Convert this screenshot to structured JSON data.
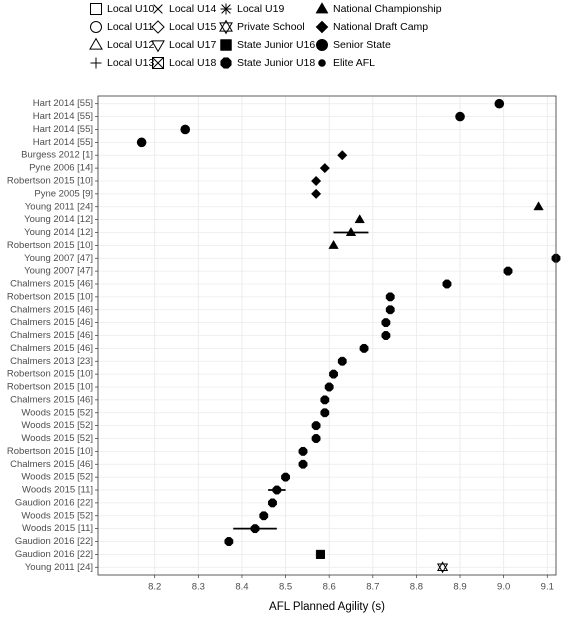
{
  "chart_data": {
    "type": "scatter",
    "x_label": "AFL Planned Agility (s)",
    "xlim": [
      8.07,
      9.12
    ],
    "xticks": [
      8.2,
      8.3,
      8.4,
      8.5,
      8.6,
      8.7,
      8.8,
      8.9,
      {
        "value": 9,
        "label": "9.0"
      },
      9.1
    ],
    "grid": true,
    "categories": [
      "Hart 2014 [55]",
      "Hart 2014 [55]",
      "Hart 2014 [55]",
      "Hart 2014 [55]",
      "Burgess 2012 [1]",
      "Pyne 2006 [14]",
      "Robertson 2015 [10]",
      "Pyne 2005 [9]",
      "Young 2011 [24]",
      "Young 2014 [12]",
      "Young 2014 [12]",
      "Robertson 2015 [10]",
      "Young 2007 [47]",
      "Young 2007 [47]",
      "Chalmers 2015 [46]",
      "Robertson 2015 [10]",
      "Chalmers 2015 [46]",
      "Chalmers 2015 [46]",
      "Chalmers 2015 [46]",
      "Chalmers 2015 [46]",
      "Chalmers 2013 [23]",
      "Robertson 2015 [10]",
      "Robertson 2015 [10]",
      "Chalmers 2015 [46]",
      "Woods 2015 [52]",
      "Woods 2015 [52]",
      "Woods 2015 [52]",
      "Robertson 2015 [10]",
      "Chalmers 2015 [46]",
      "Woods 2015 [52]",
      "Woods 2015 [11]",
      "Gaudion 2016 [22]",
      "Woods 2015 [52]",
      "Woods 2015 [11]",
      "Gaudion 2016 [22]",
      "Gaudion 2016 [22]",
      "Young 2011 [24]"
    ],
    "series": [
      {
        "name": "Local U10",
        "color": "#000000",
        "shape": "square-open",
        "values": [
          null,
          null,
          null,
          null,
          null,
          null,
          null,
          null,
          null,
          null,
          null,
          null,
          null,
          null,
          null,
          null,
          null,
          null,
          null,
          null,
          null,
          null,
          null,
          null,
          null,
          null,
          null,
          null,
          null,
          null,
          null,
          null,
          null,
          null,
          null,
          null,
          null
        ]
      },
      {
        "name": "Local U11",
        "color": "#000000",
        "shape": "circle-open",
        "values": [
          null,
          null,
          null,
          null,
          null,
          null,
          null,
          null,
          null,
          null,
          null,
          null,
          null,
          null,
          null,
          null,
          null,
          null,
          null,
          null,
          null,
          null,
          null,
          null,
          null,
          null,
          null,
          null,
          null,
          null,
          null,
          null,
          null,
          null,
          null,
          null,
          null
        ]
      },
      {
        "name": "Local U12",
        "color": "#000000",
        "shape": "triangle-open",
        "values": [
          null,
          null,
          null,
          null,
          null,
          null,
          null,
          null,
          null,
          null,
          null,
          null,
          null,
          null,
          null,
          null,
          null,
          null,
          null,
          null,
          null,
          null,
          null,
          null,
          null,
          null,
          null,
          null,
          null,
          null,
          null,
          null,
          null,
          null,
          null,
          null,
          null
        ]
      },
      {
        "name": "Local U13",
        "color": "#000000",
        "shape": "plus",
        "values": [
          null,
          null,
          null,
          null,
          null,
          null,
          null,
          null,
          null,
          null,
          null,
          null,
          null,
          null,
          null,
          null,
          null,
          null,
          null,
          null,
          null,
          null,
          null,
          null,
          null,
          null,
          null,
          null,
          null,
          null,
          null,
          null,
          null,
          null,
          null,
          null,
          null
        ]
      },
      {
        "name": "Local U14",
        "color": "#000000",
        "shape": "cross",
        "values": [
          null,
          null,
          null,
          null,
          null,
          null,
          null,
          null,
          null,
          null,
          null,
          null,
          null,
          null,
          null,
          null,
          null,
          null,
          null,
          null,
          null,
          null,
          null,
          null,
          null,
          null,
          null,
          null,
          null,
          null,
          null,
          null,
          null,
          null,
          null,
          null,
          null
        ]
      },
      {
        "name": "Local U15",
        "color": "#000000",
        "shape": "diamond-open",
        "values": [
          null,
          null,
          null,
          null,
          null,
          null,
          null,
          null,
          null,
          null,
          null,
          null,
          null,
          null,
          null,
          null,
          null,
          null,
          null,
          null,
          null,
          null,
          null,
          null,
          null,
          null,
          null,
          null,
          null,
          null,
          null,
          null,
          null,
          null,
          null,
          null,
          null
        ]
      },
      {
        "name": "Local U17",
        "color": "#000000",
        "shape": "triangle-down-open",
        "values": [
          null,
          null,
          null,
          null,
          null,
          null,
          null,
          null,
          null,
          null,
          null,
          null,
          null,
          null,
          null,
          null,
          null,
          null,
          null,
          null,
          null,
          null,
          null,
          null,
          null,
          null,
          null,
          null,
          null,
          null,
          null,
          null,
          null,
          null,
          null,
          null,
          null
        ]
      },
      {
        "name": "Local U18",
        "color": "#000000",
        "shape": "square-cross",
        "values": [
          null,
          null,
          null,
          null,
          null,
          null,
          null,
          null,
          null,
          null,
          null,
          null,
          null,
          null,
          null,
          null,
          null,
          null,
          null,
          null,
          null,
          null,
          null,
          null,
          null,
          null,
          null,
          null,
          null,
          null,
          null,
          null,
          null,
          null,
          null,
          null,
          null
        ]
      },
      {
        "name": "Local U19",
        "color": "#000000",
        "shape": "asterisk",
        "values": [
          null,
          null,
          null,
          null,
          null,
          null,
          null,
          null,
          null,
          null,
          null,
          null,
          null,
          null,
          null,
          null,
          null,
          null,
          null,
          null,
          null,
          null,
          null,
          null,
          null,
          null,
          null,
          null,
          null,
          null,
          null,
          null,
          null,
          null,
          null,
          null,
          null
        ]
      },
      {
        "name": "Private School",
        "color": "#000000",
        "shape": "star-open",
        "values": [
          null,
          null,
          null,
          null,
          null,
          null,
          null,
          null,
          null,
          null,
          null,
          null,
          null,
          null,
          null,
          null,
          null,
          null,
          null,
          null,
          null,
          null,
          null,
          null,
          null,
          null,
          null,
          null,
          null,
          null,
          null,
          null,
          null,
          null,
          null,
          null,
          8.86
        ]
      },
      {
        "name": "State Junior U16",
        "color": "#000000",
        "shape": "square",
        "values": [
          null,
          null,
          null,
          null,
          null,
          null,
          null,
          null,
          null,
          null,
          null,
          null,
          null,
          null,
          null,
          null,
          null,
          null,
          null,
          null,
          null,
          null,
          null,
          null,
          null,
          null,
          null,
          null,
          null,
          null,
          null,
          null,
          null,
          null,
          null,
          8.58,
          null
        ]
      },
      {
        "name": "State Junior U18",
        "color": "#000000",
        "shape": "octagon",
        "values": [
          null,
          null,
          null,
          null,
          null,
          null,
          null,
          null,
          null,
          null,
          null,
          null,
          9.12,
          9.01,
          8.87,
          8.74,
          8.74,
          8.73,
          8.73,
          8.68,
          8.63,
          8.61,
          8.6,
          8.59,
          8.59,
          8.57,
          8.57,
          8.54,
          8.54,
          8.5,
          8.48,
          8.47,
          8.45,
          8.43,
          8.37,
          null,
          null
        ],
        "errors": [
          null,
          null,
          null,
          null,
          null,
          null,
          null,
          null,
          null,
          null,
          null,
          null,
          null,
          null,
          null,
          null,
          null,
          null,
          null,
          null,
          null,
          null,
          null,
          null,
          null,
          null,
          null,
          null,
          null,
          null,
          0.02,
          null,
          null,
          0.05,
          null,
          null,
          null
        ]
      },
      {
        "name": "National Championship",
        "color": "#000000",
        "shape": "triangle",
        "values": [
          null,
          null,
          null,
          null,
          null,
          null,
          null,
          null,
          9.08,
          8.67,
          8.65,
          8.61,
          null,
          null,
          null,
          null,
          null,
          null,
          null,
          null,
          null,
          null,
          null,
          null,
          null,
          null,
          null,
          null,
          null,
          null,
          null,
          null,
          null,
          null,
          null,
          null,
          null
        ],
        "errors": [
          null,
          null,
          null,
          null,
          null,
          null,
          null,
          null,
          null,
          null,
          0.04,
          null,
          null,
          null,
          null,
          null,
          null,
          null,
          null,
          null,
          null,
          null,
          null,
          null,
          null,
          null,
          null,
          null,
          null,
          null,
          null,
          null,
          null,
          null,
          null,
          null,
          null
        ]
      },
      {
        "name": "National Draft Camp",
        "color": "#000000",
        "shape": "diamond",
        "values": [
          null,
          null,
          null,
          null,
          8.63,
          8.59,
          8.57,
          8.57,
          null,
          null,
          null,
          null,
          null,
          null,
          null,
          null,
          null,
          null,
          null,
          null,
          null,
          null,
          null,
          null,
          null,
          null,
          null,
          null,
          null,
          null,
          null,
          null,
          null,
          null,
          null,
          null,
          null
        ]
      },
      {
        "name": "Senior State",
        "color": "#000000",
        "shape": "circle",
        "values": [
          8.99,
          8.9,
          8.27,
          8.17,
          null,
          null,
          null,
          null,
          null,
          null,
          null,
          null,
          null,
          null,
          null,
          null,
          null,
          null,
          null,
          null,
          null,
          null,
          null,
          null,
          null,
          null,
          null,
          null,
          null,
          null,
          null,
          null,
          null,
          null,
          null,
          null,
          null
        ]
      },
      {
        "name": "Elite AFL",
        "color": "#000000",
        "shape": "small-circle",
        "values": [
          null,
          null,
          null,
          null,
          null,
          null,
          null,
          null,
          null,
          null,
          null,
          null,
          null,
          null,
          null,
          null,
          null,
          null,
          null,
          null,
          null,
          null,
          null,
          null,
          null,
          null,
          null,
          null,
          null,
          null,
          null,
          null,
          null,
          null,
          null,
          null,
          null
        ]
      }
    ]
  }
}
